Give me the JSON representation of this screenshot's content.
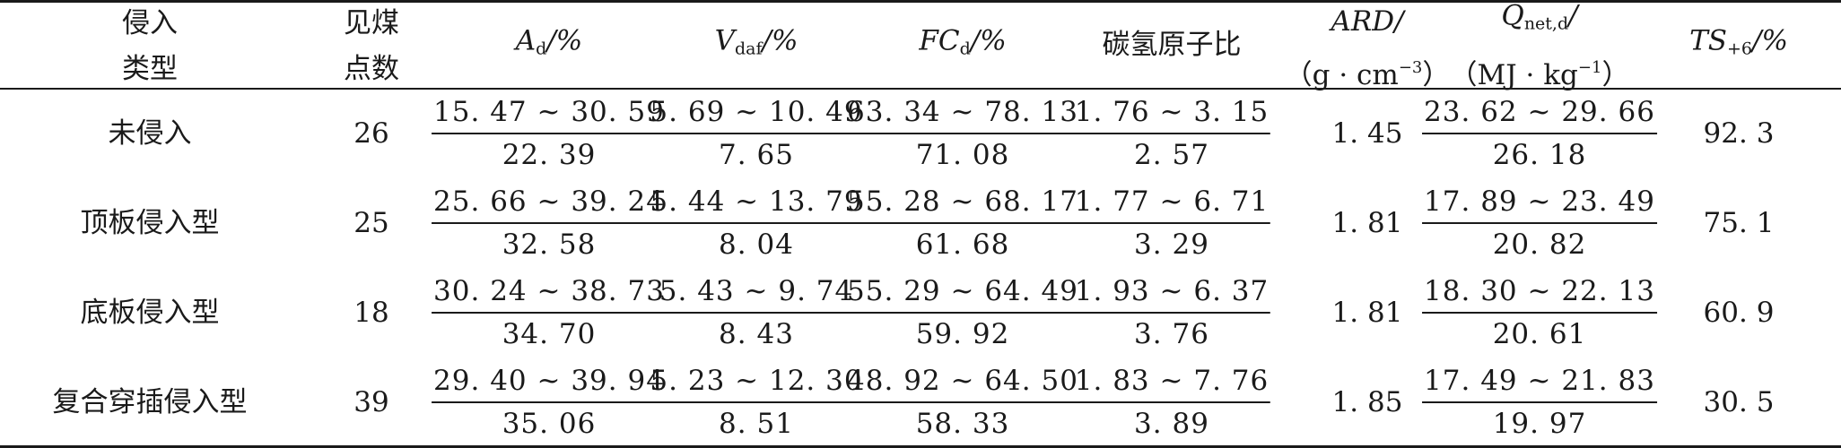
{
  "header": {
    "col1": [
      "侵入",
      "类型"
    ],
    "col2": [
      "见煤",
      "点数"
    ],
    "col3": {
      "main": "A",
      "sub": "d",
      "unit": "/%"
    },
    "col4": {
      "main": "V",
      "sub": "daf",
      "unit": "/%"
    },
    "col5": {
      "main": "FC",
      "sub": "d",
      "unit": "/%"
    },
    "col6": "碳氢原子比",
    "col7": {
      "main": "ARD/",
      "unit_pre": "（g · cm",
      "unit_sup": "−3",
      "unit_post": "）"
    },
    "col8": {
      "main": "Q",
      "sub": "net,d",
      "slash": "/",
      "unit_pre": "（MJ · kg",
      "unit_sup": "−1",
      "unit_post": "）"
    },
    "col9": {
      "main": "TS",
      "sub": "+6",
      "unit": "/%"
    }
  },
  "rows": [
    {
      "type": "未侵入",
      "count": "26",
      "ad": [
        "15. 47 ~ 30. 59",
        "22. 39"
      ],
      "vdaf": [
        "5. 69 ~ 10. 49",
        "7. 65"
      ],
      "fcd": [
        "63. 34 ~ 78. 13",
        "71. 08"
      ],
      "ch": [
        "1. 76 ~ 3. 15",
        "2. 57"
      ],
      "ard": "1. 45",
      "q": [
        "23. 62 ~ 29. 66",
        "26. 18"
      ],
      "ts": "92. 3"
    },
    {
      "type": "顶板侵入型",
      "count": "25",
      "ad": [
        "25. 66 ~ 39. 24",
        "32. 58"
      ],
      "vdaf": [
        "5. 44 ~ 13. 79",
        "8. 04"
      ],
      "fcd": [
        "55. 28 ~ 68. 17",
        "61. 68"
      ],
      "ch": [
        "1. 77 ~ 6. 71",
        "3. 29"
      ],
      "ard": "1. 81",
      "q": [
        "17. 89 ~ 23. 49",
        "20. 82"
      ],
      "ts": "75. 1"
    },
    {
      "type": "底板侵入型",
      "count": "18",
      "ad": [
        "30. 24 ~ 38. 73",
        "34. 70"
      ],
      "vdaf": [
        "5. 43 ~ 9. 74",
        "8. 43"
      ],
      "fcd": [
        "55. 29 ~ 64. 49",
        "59. 92"
      ],
      "ch": [
        "1. 93 ~ 6. 37",
        "3. 76"
      ],
      "ard": "1. 81",
      "q": [
        "18. 30 ~ 22. 13",
        "20. 61"
      ],
      "ts": "60. 9"
    },
    {
      "type": "复合穿插侵入型",
      "count": "39",
      "ad": [
        "29. 40 ~ 39. 94",
        "35. 06"
      ],
      "vdaf": [
        "5. 23 ~ 12. 30",
        "8. 51"
      ],
      "fcd": [
        "48. 92 ~ 64. 50",
        "58. 33"
      ],
      "ch": [
        "1. 83 ~ 7. 76",
        "3. 89"
      ],
      "ard": "1. 85",
      "q": [
        "17. 49 ~ 21. 83",
        "19. 97"
      ],
      "ts": "30. 5"
    }
  ]
}
